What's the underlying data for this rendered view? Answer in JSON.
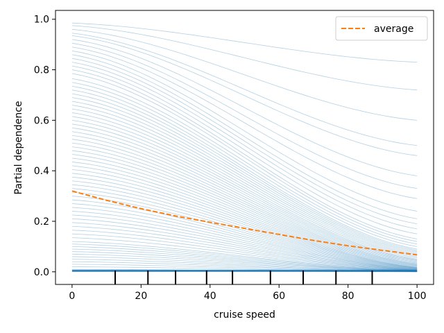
{
  "chart_data": {
    "type": "line",
    "title": "",
    "xlabel": "cruise speed",
    "ylabel": "Partial dependence",
    "xlim": [
      -4.8,
      104.8
    ],
    "ylim": [
      -0.05,
      1.035
    ],
    "x_ticks": [
      0,
      20,
      40,
      60,
      80,
      100
    ],
    "y_ticks": [
      0.0,
      0.2,
      0.4,
      0.6,
      0.8,
      1.0
    ],
    "x_tick_labels": [
      "0",
      "20",
      "40",
      "60",
      "80",
      "100"
    ],
    "y_tick_labels": [
      "0.0",
      "0.2",
      "0.4",
      "0.6",
      "0.8",
      "1.0"
    ],
    "legend": {
      "position": "top-right",
      "entries": [
        "average"
      ]
    },
    "grid": false,
    "average": {
      "name": "average",
      "color": "#ff7f0e",
      "x": [
        0,
        10,
        20,
        30,
        40,
        50,
        60,
        70,
        80,
        90,
        100
      ],
      "y": [
        0.32,
        0.283,
        0.25,
        0.221,
        0.196,
        0.172,
        0.148,
        0.124,
        0.103,
        0.085,
        0.067
      ]
    },
    "ice_lines": {
      "color": "#1f77b4",
      "x": [
        0,
        20,
        40,
        60,
        80,
        100
      ],
      "start_values": [
        0.985,
        0.975,
        0.96,
        0.945,
        0.935,
        0.92,
        0.905,
        0.89,
        0.875,
        0.86,
        0.845,
        0.83,
        0.815,
        0.8,
        0.785,
        0.765,
        0.75,
        0.735,
        0.72,
        0.705,
        0.69,
        0.675,
        0.66,
        0.645,
        0.63,
        0.615,
        0.6,
        0.585,
        0.57,
        0.555,
        0.54,
        0.525,
        0.51,
        0.495,
        0.48,
        0.465,
        0.45,
        0.435,
        0.42,
        0.405,
        0.39,
        0.375,
        0.36,
        0.345,
        0.33,
        0.315,
        0.3,
        0.285,
        0.27,
        0.255,
        0.24,
        0.225,
        0.21,
        0.195,
        0.18,
        0.165,
        0.15,
        0.135,
        0.12,
        0.11,
        0.1,
        0.09,
        0.08,
        0.07,
        0.06,
        0.05,
        0.04,
        0.03,
        0.02,
        0.01,
        0.005
      ],
      "end_values": [
        0.83,
        0.72,
        0.6,
        0.5,
        0.46,
        0.38,
        0.33,
        0.29,
        0.24,
        0.21,
        0.19,
        0.17,
        0.15,
        0.13,
        0.12,
        0.11,
        0.1,
        0.09,
        0.085,
        0.08,
        0.075,
        0.07,
        0.065,
        0.06,
        0.055,
        0.05,
        0.047,
        0.044,
        0.041,
        0.038,
        0.035,
        0.032,
        0.03,
        0.028,
        0.026,
        0.024,
        0.022,
        0.02,
        0.018,
        0.017,
        0.016,
        0.015,
        0.014,
        0.013,
        0.012,
        0.011,
        0.01,
        0.009,
        0.008,
        0.008,
        0.007,
        0.006,
        0.006,
        0.005,
        0.005,
        0.004,
        0.004,
        0.003,
        0.003,
        0.003,
        0.002,
        0.002,
        0.002,
        0.002,
        0.001,
        0.001,
        0.001,
        0.001,
        0.001,
        0.0,
        0.0
      ]
    },
    "rug_x": [
      12.5,
      22,
      30,
      39,
      46.5,
      57.5,
      67,
      76.5,
      87
    ]
  }
}
